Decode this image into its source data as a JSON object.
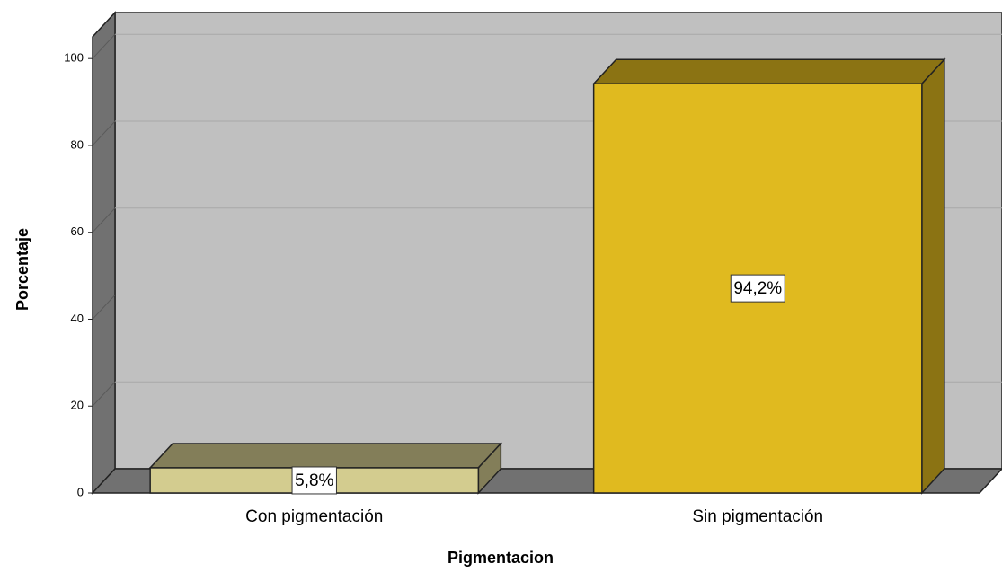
{
  "chart_data": {
    "type": "bar",
    "categories": [
      "Con pigmentación",
      "Sin pigmentación"
    ],
    "values": [
      5.8,
      94.2
    ],
    "value_labels": [
      "5,8%",
      "94,2%"
    ],
    "colors": [
      "#d3cc8f",
      "#e0ba1f"
    ],
    "ylim": [
      0,
      105
    ],
    "yticks": [
      0,
      20,
      40,
      60,
      80,
      100
    ],
    "grid": true,
    "y_label": "Porcentaje",
    "x_label": "Pigmentacion"
  }
}
